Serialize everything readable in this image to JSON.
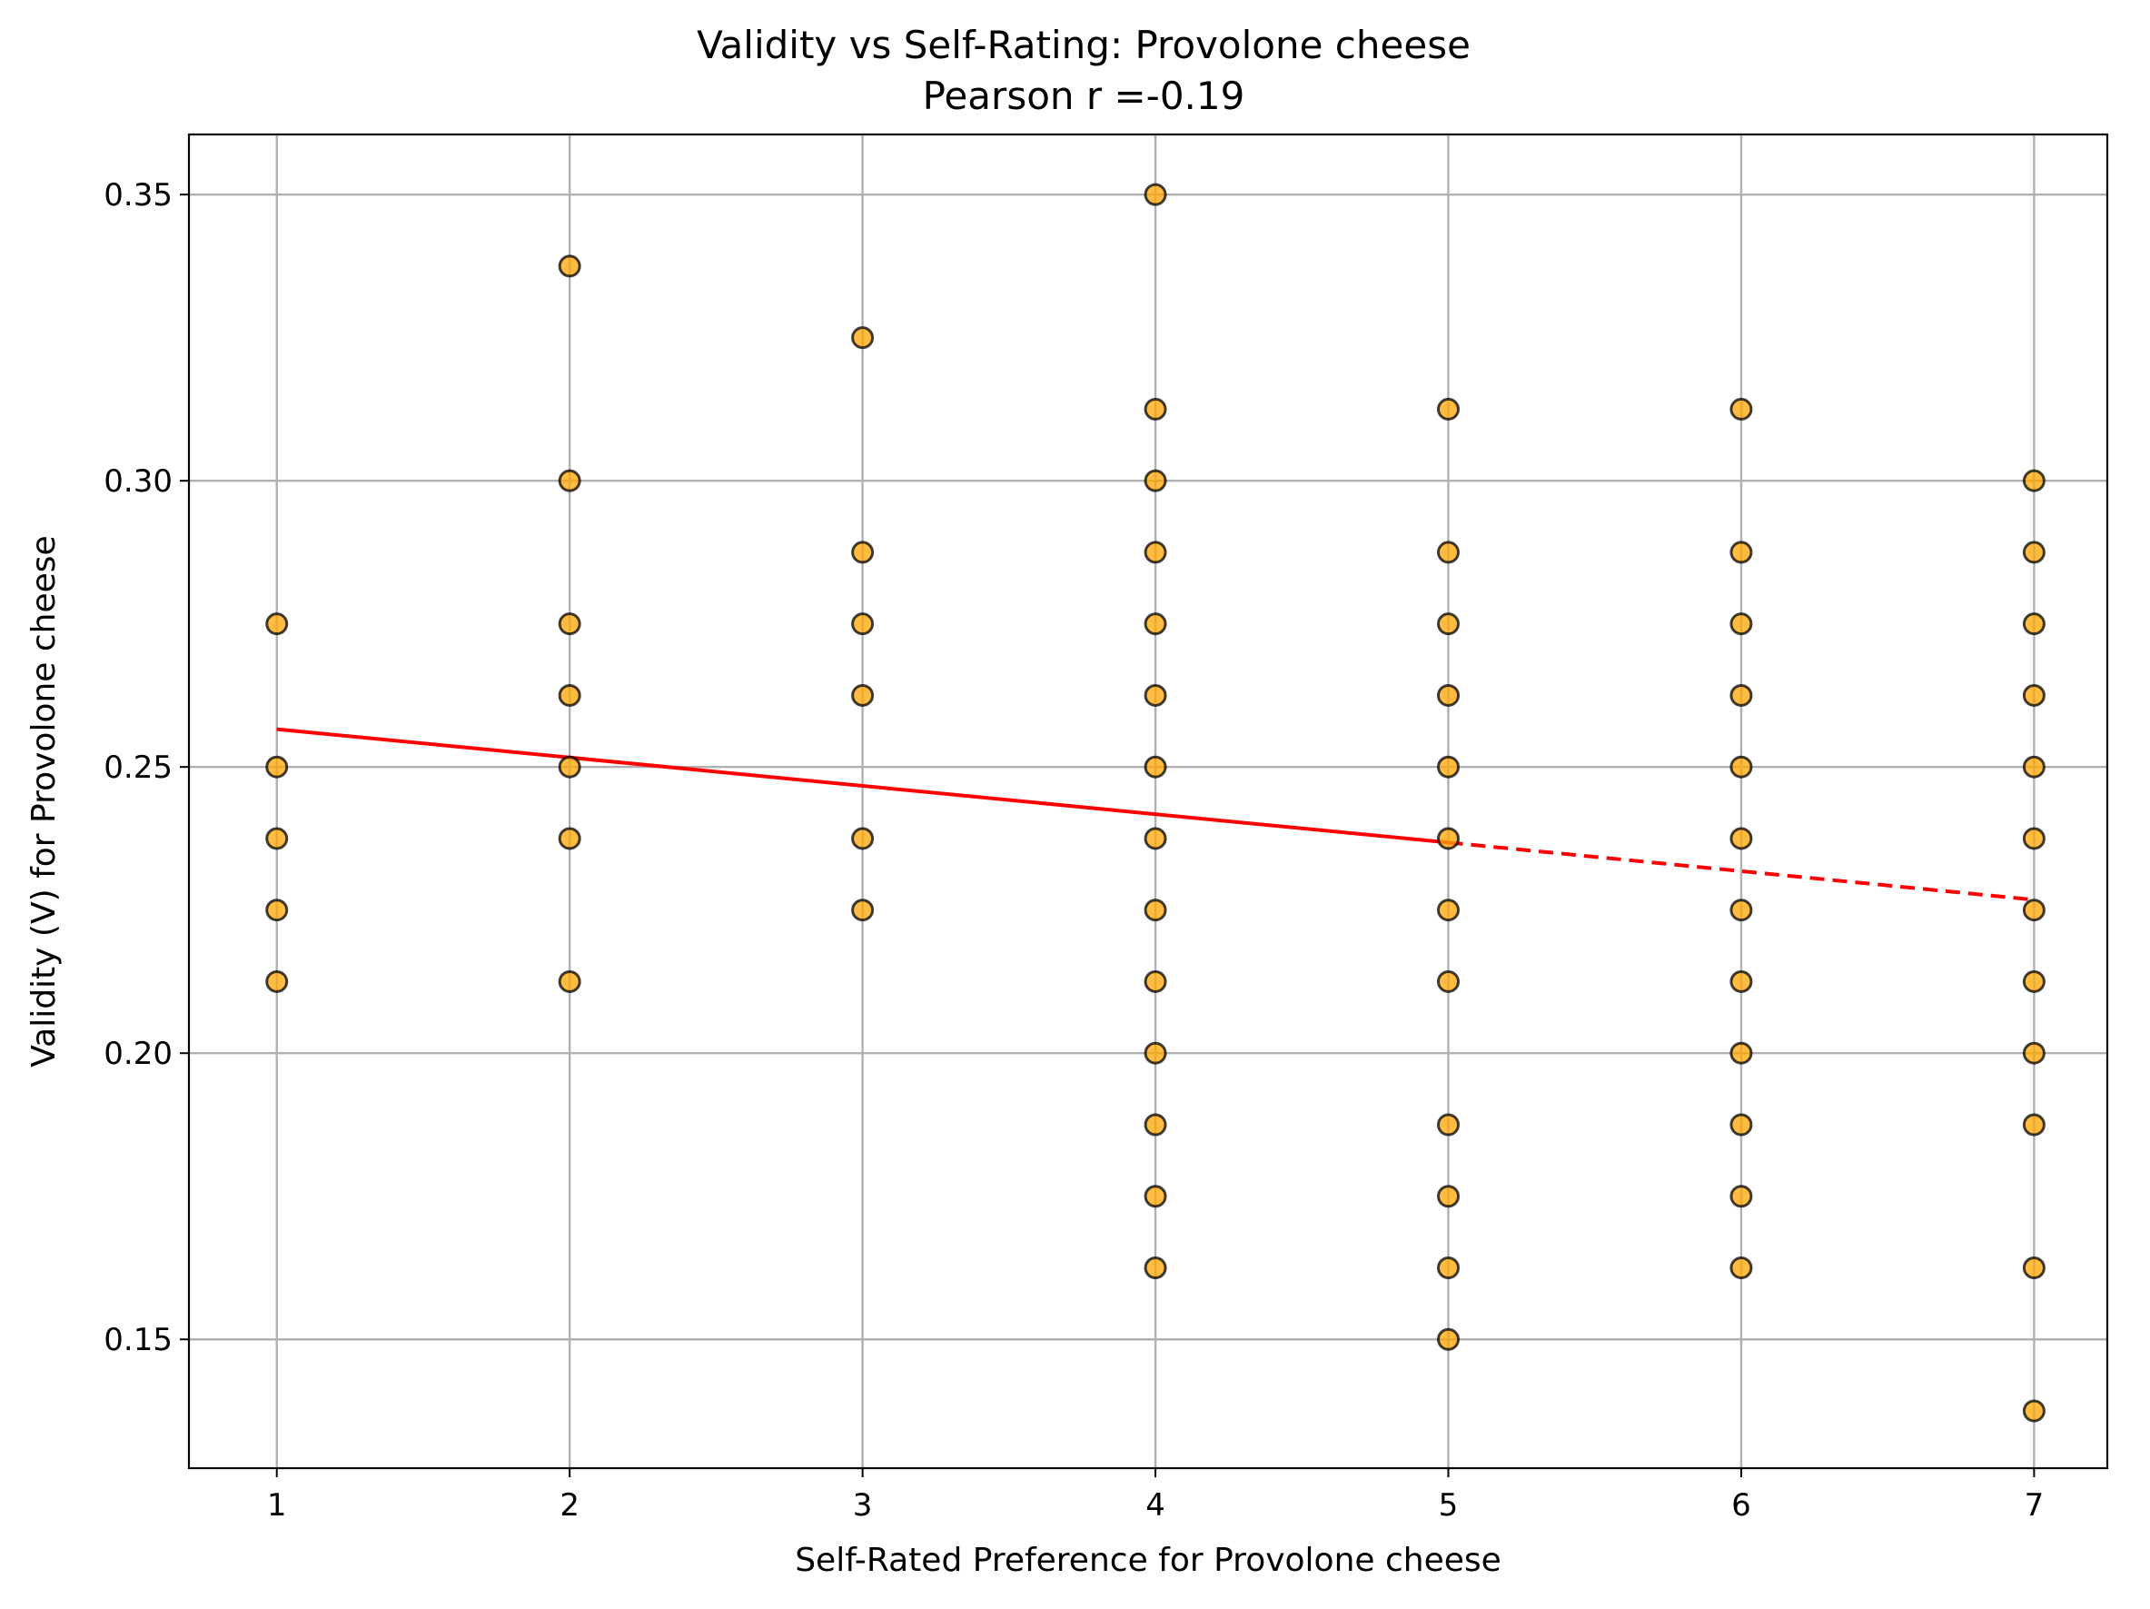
{
  "chart_data": {
    "type": "scatter",
    "title": "Validity vs Self-Rating: Provolone cheese",
    "subtitle": "Pearson r =-0.19",
    "xlabel": "Self-Rated Preference for Provolone cheese",
    "ylabel": "Validity (V) for Provolone cheese",
    "xlim": [
      0.7,
      7.25
    ],
    "ylim": [
      0.1275,
      0.3605
    ],
    "x_ticks": [
      "1",
      "2",
      "3",
      "4",
      "5",
      "6",
      "7"
    ],
    "y_ticks": [
      "0.15",
      "0.20",
      "0.25",
      "0.30",
      "0.35"
    ],
    "grid": true,
    "marker_color": "#FFA500",
    "marker_edge_color": "#000000",
    "points": [
      [
        1,
        0.275
      ],
      [
        1,
        0.25
      ],
      [
        1,
        0.2375
      ],
      [
        1,
        0.225
      ],
      [
        1,
        0.2125
      ],
      [
        2,
        0.3375
      ],
      [
        2,
        0.3
      ],
      [
        2,
        0.275
      ],
      [
        2,
        0.2625
      ],
      [
        2,
        0.25
      ],
      [
        2,
        0.2375
      ],
      [
        2,
        0.2125
      ],
      [
        3,
        0.325
      ],
      [
        3,
        0.2875
      ],
      [
        3,
        0.275
      ],
      [
        3,
        0.2625
      ],
      [
        3,
        0.2375
      ],
      [
        3,
        0.225
      ],
      [
        4,
        0.35
      ],
      [
        4,
        0.3125
      ],
      [
        4,
        0.3
      ],
      [
        4,
        0.2875
      ],
      [
        4,
        0.275
      ],
      [
        4,
        0.2625
      ],
      [
        4,
        0.25
      ],
      [
        4,
        0.2375
      ],
      [
        4,
        0.225
      ],
      [
        4,
        0.2125
      ],
      [
        4,
        0.2
      ],
      [
        4,
        0.1875
      ],
      [
        4,
        0.175
      ],
      [
        4,
        0.1625
      ],
      [
        5,
        0.3125
      ],
      [
        5,
        0.2875
      ],
      [
        5,
        0.275
      ],
      [
        5,
        0.2625
      ],
      [
        5,
        0.25
      ],
      [
        5,
        0.2375
      ],
      [
        5,
        0.225
      ],
      [
        5,
        0.2125
      ],
      [
        5,
        0.1875
      ],
      [
        5,
        0.175
      ],
      [
        5,
        0.1625
      ],
      [
        5,
        0.15
      ],
      [
        6,
        0.3125
      ],
      [
        6,
        0.2875
      ],
      [
        6,
        0.275
      ],
      [
        6,
        0.2625
      ],
      [
        6,
        0.25
      ],
      [
        6,
        0.2375
      ],
      [
        6,
        0.225
      ],
      [
        6,
        0.2125
      ],
      [
        6,
        0.2
      ],
      [
        6,
        0.1875
      ],
      [
        6,
        0.175
      ],
      [
        6,
        0.1625
      ],
      [
        7,
        0.3
      ],
      [
        7,
        0.2875
      ],
      [
        7,
        0.275
      ],
      [
        7,
        0.2625
      ],
      [
        7,
        0.25
      ],
      [
        7,
        0.2375
      ],
      [
        7,
        0.225
      ],
      [
        7,
        0.2125
      ],
      [
        7,
        0.2
      ],
      [
        7,
        0.1875
      ],
      [
        7,
        0.1625
      ],
      [
        7,
        0.1375
      ]
    ],
    "fit_line": {
      "color": "#ff0000",
      "solid": [
        [
          1,
          0.2566
        ],
        [
          5,
          0.2368
        ]
      ],
      "dashed": [
        [
          5,
          0.2368
        ],
        [
          7,
          0.2268
        ]
      ]
    }
  }
}
